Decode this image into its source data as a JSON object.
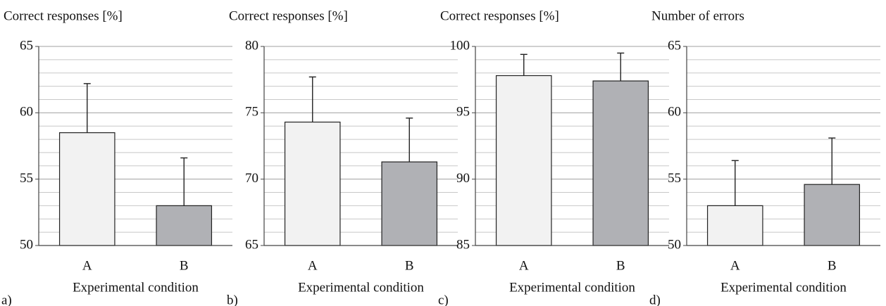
{
  "chart_data": [
    {
      "type": "bar",
      "title": "Correct responses [%]",
      "xlabel": "Experimental condition",
      "panel_label": "a)",
      "categories": [
        "A",
        "B"
      ],
      "values": [
        58.5,
        53.0
      ],
      "errors": [
        3.7,
        3.6
      ],
      "colors": [
        "#f2f2f2",
        "#b0b1b5"
      ],
      "ylim": [
        50,
        65
      ],
      "yticks": [
        50,
        55,
        60,
        65
      ],
      "minor_yticks": [
        51,
        52,
        53,
        54,
        56,
        57,
        58,
        59,
        61,
        62,
        63,
        64
      ],
      "grid": true
    },
    {
      "type": "bar",
      "title": "Correct responses [%]",
      "xlabel": "Experimental condition",
      "panel_label": "b)",
      "categories": [
        "A",
        "B"
      ],
      "values": [
        74.3,
        71.3
      ],
      "errors": [
        3.4,
        3.3
      ],
      "colors": [
        "#f2f2f2",
        "#b0b1b5"
      ],
      "ylim": [
        65,
        80
      ],
      "yticks": [
        65,
        70,
        75,
        80
      ],
      "minor_yticks": [
        66,
        67,
        68,
        69,
        71,
        72,
        73,
        74,
        76,
        77,
        78,
        79
      ],
      "grid": true
    },
    {
      "type": "bar",
      "title": "Correct responses [%]",
      "xlabel": "Experimental condition",
      "panel_label": "c)",
      "categories": [
        "A",
        "B"
      ],
      "values": [
        97.8,
        97.4
      ],
      "errors": [
        1.6,
        2.1
      ],
      "colors": [
        "#f2f2f2",
        "#b0b1b5"
      ],
      "ylim": [
        85,
        100
      ],
      "yticks": [
        85,
        90,
        95,
        100
      ],
      "minor_yticks": [
        86,
        87,
        88,
        89,
        91,
        92,
        93,
        94,
        96,
        97,
        98,
        99
      ],
      "grid": true
    },
    {
      "type": "bar",
      "title": "Number of errors",
      "xlabel": "Experimental condition",
      "panel_label": "d)",
      "categories": [
        "A",
        "B"
      ],
      "values": [
        53.0,
        54.6
      ],
      "errors": [
        3.4,
        3.5
      ],
      "colors": [
        "#f2f2f2",
        "#b0b1b5"
      ],
      "ylim": [
        50,
        65
      ],
      "yticks": [
        50,
        55,
        60,
        65
      ],
      "minor_yticks": [
        51,
        52,
        53,
        54,
        56,
        57,
        58,
        59,
        61,
        62,
        63,
        64
      ],
      "grid": true
    }
  ]
}
